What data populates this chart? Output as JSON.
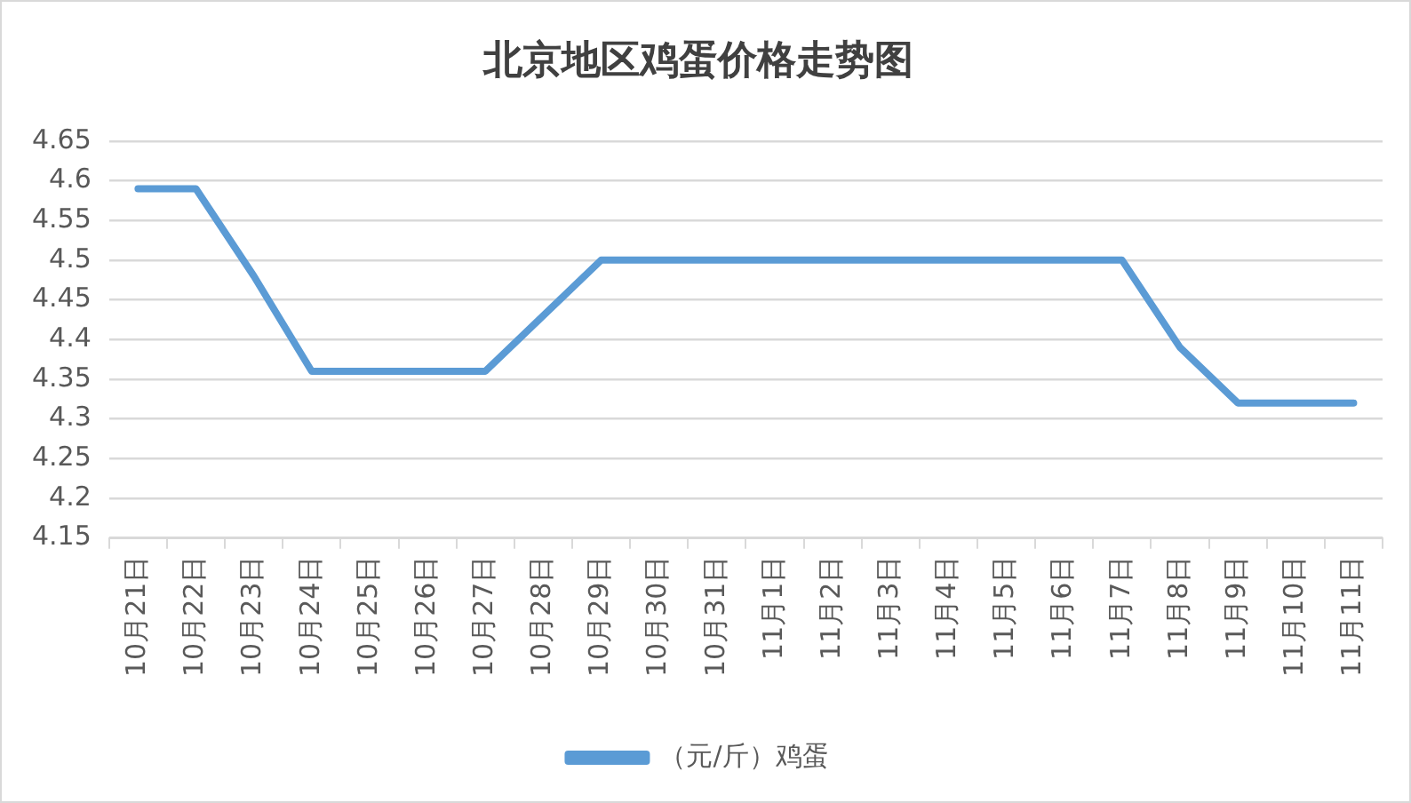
{
  "chart_data": {
    "type": "line",
    "title": "北京地区鸡蛋价格走势图",
    "categories": [
      "10月21日",
      "10月22日",
      "10月23日",
      "10月24日",
      "10月25日",
      "10月26日",
      "10月27日",
      "10月28日",
      "10月29日",
      "10月30日",
      "10月31日",
      "11月1日",
      "11月2日",
      "11月3日",
      "11月4日",
      "11月5日",
      "11月6日",
      "11月7日",
      "11月8日",
      "11月9日",
      "11月10日",
      "11月11日"
    ],
    "series": [
      {
        "name": "（元/斤）鸡蛋",
        "color": "#5b9bd5",
        "values": [
          4.59,
          4.59,
          4.48,
          4.36,
          4.36,
          4.36,
          4.36,
          4.43,
          4.5,
          4.5,
          4.5,
          4.5,
          4.5,
          4.5,
          4.5,
          4.5,
          4.5,
          4.5,
          4.39,
          4.32,
          4.32,
          4.32
        ]
      }
    ],
    "ylim": [
      4.15,
      4.65
    ],
    "yticks": [
      4.15,
      4.2,
      4.25,
      4.3,
      4.35,
      4.4,
      4.45,
      4.5,
      4.55,
      4.6,
      4.65
    ],
    "grid": "y",
    "legend": "bottom",
    "marker": "none",
    "line_style": "solid"
  }
}
